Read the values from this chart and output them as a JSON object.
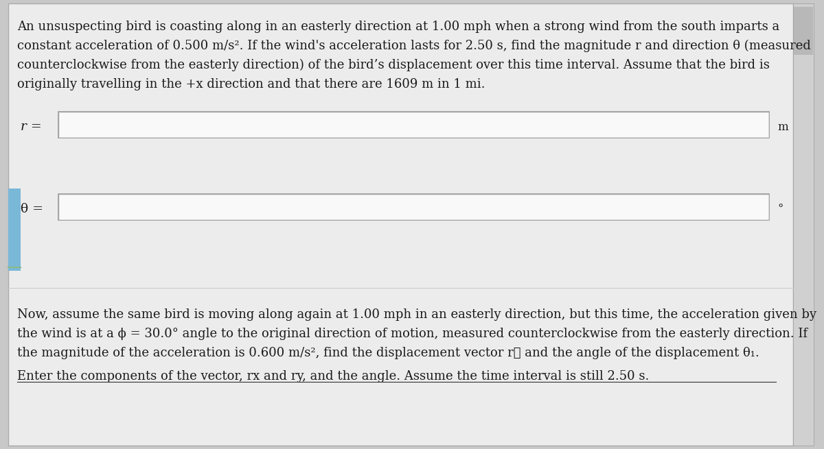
{
  "background_color": "#c8c8c8",
  "panel_color": "#e8e8e8",
  "panel_border_color": "#aaaaaa",
  "input_box_color": "#f5f5f5",
  "input_box_border_top": "#aaaaaa",
  "input_box_border_bottom": "#ffffff",
  "text_color": "#1a1a1a",
  "label_color": "#1a1a1a",
  "unit_color": "#1a1a1a",
  "left_accent_color": "#7ab8d8",
  "scrollbar_color": "#b0b0b0",
  "scrollbar_bg": "#d8d8d8",
  "line1": "An unsuspecting bird is coasting along in an easterly direction at 1.00 mph when a strong wind from the south imparts a",
  "line2": "constant acceleration of 0.500 m/s². If the wind's acceleration lasts for 2.50 s, find the magnitude r and direction θ (measured",
  "line3": "counterclockwise from the easterly direction) of the bird’s displacement over this time interval. Assume that the bird is",
  "line4": "originally travelling in the +x direction and that there are 1609 m in 1 mi.",
  "label_r": "r =",
  "unit_r": "m",
  "label_theta": "θ =",
  "unit_theta": "°",
  "p2_line1": "Now, assume the same bird is moving along again at 1.00 mph in an easterly direction, but this time, the acceleration given by",
  "p2_line2": "the wind is at a ϕ = 30.0° angle to the original direction of motion, measured counterclockwise from the easterly direction. If",
  "p2_line3": "the magnitude of the acceleration is 0.600 m/s², find the displacement vector r⃗ and the angle of the displacement θ₁.",
  "p3_line1": "Enter the components of the vector, rx and ry, and the angle. Assume the time interval is still 2.50 s.",
  "font_size_body": 13.0,
  "font_size_label": 13.5,
  "font_size_unit": 12.0
}
